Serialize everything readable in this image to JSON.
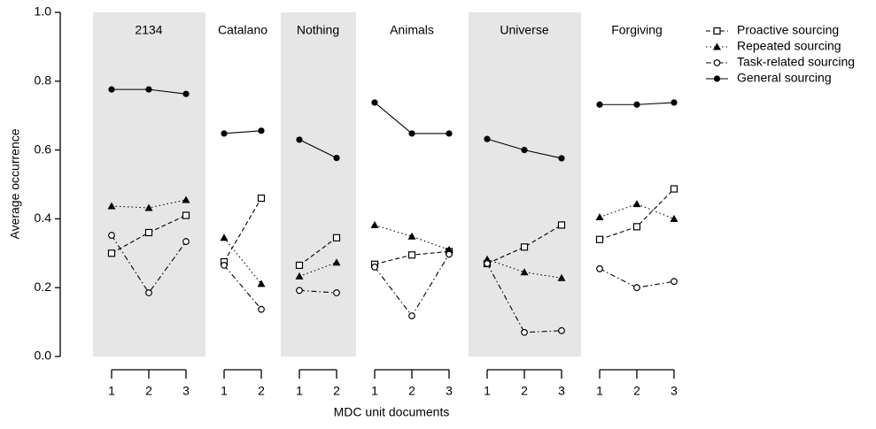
{
  "chart_data": {
    "type": "line",
    "ylabel": "Average occurrence",
    "xlabel": "MDC unit documents",
    "ylim": [
      0,
      1
    ],
    "yticks": [
      "0.0",
      "0.2",
      "0.4",
      "0.6",
      "0.8",
      "1.0"
    ],
    "yticks_values": [
      0,
      0.2,
      0.4,
      0.6,
      0.8,
      1
    ],
    "color": "#000000",
    "shade_color": "#e6e6e6",
    "series": [
      {
        "name": "Proactive sourcing",
        "marker": "square",
        "linestyle": "dashed"
      },
      {
        "name": "Repeated sourcing",
        "marker": "triangle",
        "linestyle": "dotted"
      },
      {
        "name": "Task-related sourcing",
        "marker": "circle-open",
        "linestyle": "dashdot"
      },
      {
        "name": "General sourcing",
        "marker": "circle",
        "linestyle": "solid"
      }
    ],
    "panels": [
      {
        "title": "2134",
        "shaded": true,
        "categories": [
          "1",
          "2",
          "3"
        ],
        "values": [
          [
            0.3,
            0.36,
            0.41
          ],
          [
            0.437,
            0.432,
            0.455
          ],
          [
            0.352,
            0.185,
            0.334
          ],
          [
            0.776,
            0.776,
            0.763
          ]
        ]
      },
      {
        "title": "Catalano",
        "shaded": false,
        "categories": [
          "1",
          "2"
        ],
        "values": [
          [
            0.275,
            0.46
          ],
          [
            0.345,
            0.211
          ],
          [
            0.265,
            0.137
          ],
          [
            0.648,
            0.656
          ]
        ]
      },
      {
        "title": "Nothing",
        "shaded": true,
        "categories": [
          "1",
          "2"
        ],
        "values": [
          [
            0.265,
            0.345
          ],
          [
            0.233,
            0.273
          ],
          [
            0.192,
            0.185
          ],
          [
            0.63,
            0.577
          ]
        ]
      },
      {
        "title": "Animals",
        "shaded": false,
        "categories": [
          "1",
          "2",
          "3"
        ],
        "values": [
          [
            0.268,
            0.295,
            0.305
          ],
          [
            0.382,
            0.349,
            0.31
          ],
          [
            0.26,
            0.118,
            0.297
          ],
          [
            0.738,
            0.648,
            0.648
          ]
        ]
      },
      {
        "title": "Universe",
        "shaded": true,
        "categories": [
          "1",
          "2",
          "3"
        ],
        "values": [
          [
            0.27,
            0.318,
            0.382
          ],
          [
            0.282,
            0.245,
            0.228
          ],
          [
            0.27,
            0.07,
            0.075
          ],
          [
            0.632,
            0.6,
            0.576
          ]
        ]
      },
      {
        "title": "Forgiving",
        "shaded": false,
        "categories": [
          "1",
          "2",
          "3"
        ],
        "values": [
          [
            0.34,
            0.377,
            0.487
          ],
          [
            0.405,
            0.443,
            0.4
          ],
          [
            0.255,
            0.2,
            0.218
          ],
          [
            0.732,
            0.732,
            0.738
          ]
        ]
      }
    ]
  }
}
